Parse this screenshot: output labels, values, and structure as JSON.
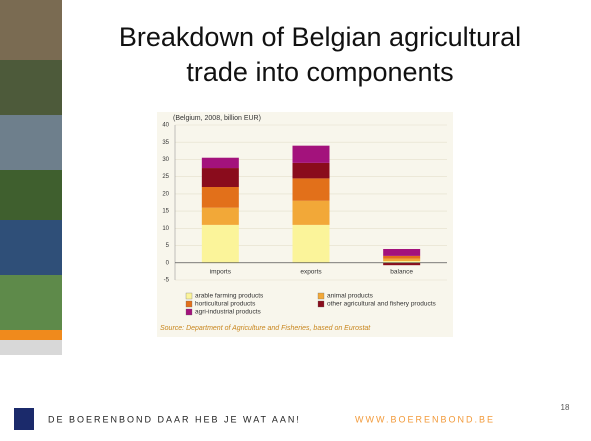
{
  "slide": {
    "title": "Breakdown of Belgian agricultural trade into components",
    "footer_text": "DE BOERENBOND DAAR HEB JE WAT AAN!",
    "footer_url": "WWW.BOERENBOND.BE",
    "page_number": "18"
  },
  "chart_data": {
    "type": "stacked-bar",
    "subtitle": "(Belgium, 2008, billion EUR)",
    "categories": [
      "imports",
      "exports",
      "balance"
    ],
    "series": [
      {
        "name": "arable farming products",
        "color": "#fbf49a",
        "values": [
          11,
          11,
          0.5
        ]
      },
      {
        "name": "animal products",
        "color": "#f2a838",
        "values": [
          5,
          7,
          0.7
        ]
      },
      {
        "name": "horticultural products",
        "color": "#e2701a",
        "values": [
          6,
          6.5,
          0.8
        ]
      },
      {
        "name": "other agricultural and fishery products",
        "color": "#8a0c1c",
        "values": [
          5.5,
          4.5,
          -0.7
        ]
      },
      {
        "name": "agri-industrial products",
        "color": "#a3127c",
        "values": [
          3,
          5,
          2
        ]
      }
    ],
    "ylim": [
      -5,
      40
    ],
    "yticks": [
      -5,
      0,
      5,
      10,
      15,
      20,
      25,
      30,
      35,
      40
    ],
    "grid": true,
    "source": "Source: Department of Agriculture and Fisheries, based on Eurostat"
  }
}
